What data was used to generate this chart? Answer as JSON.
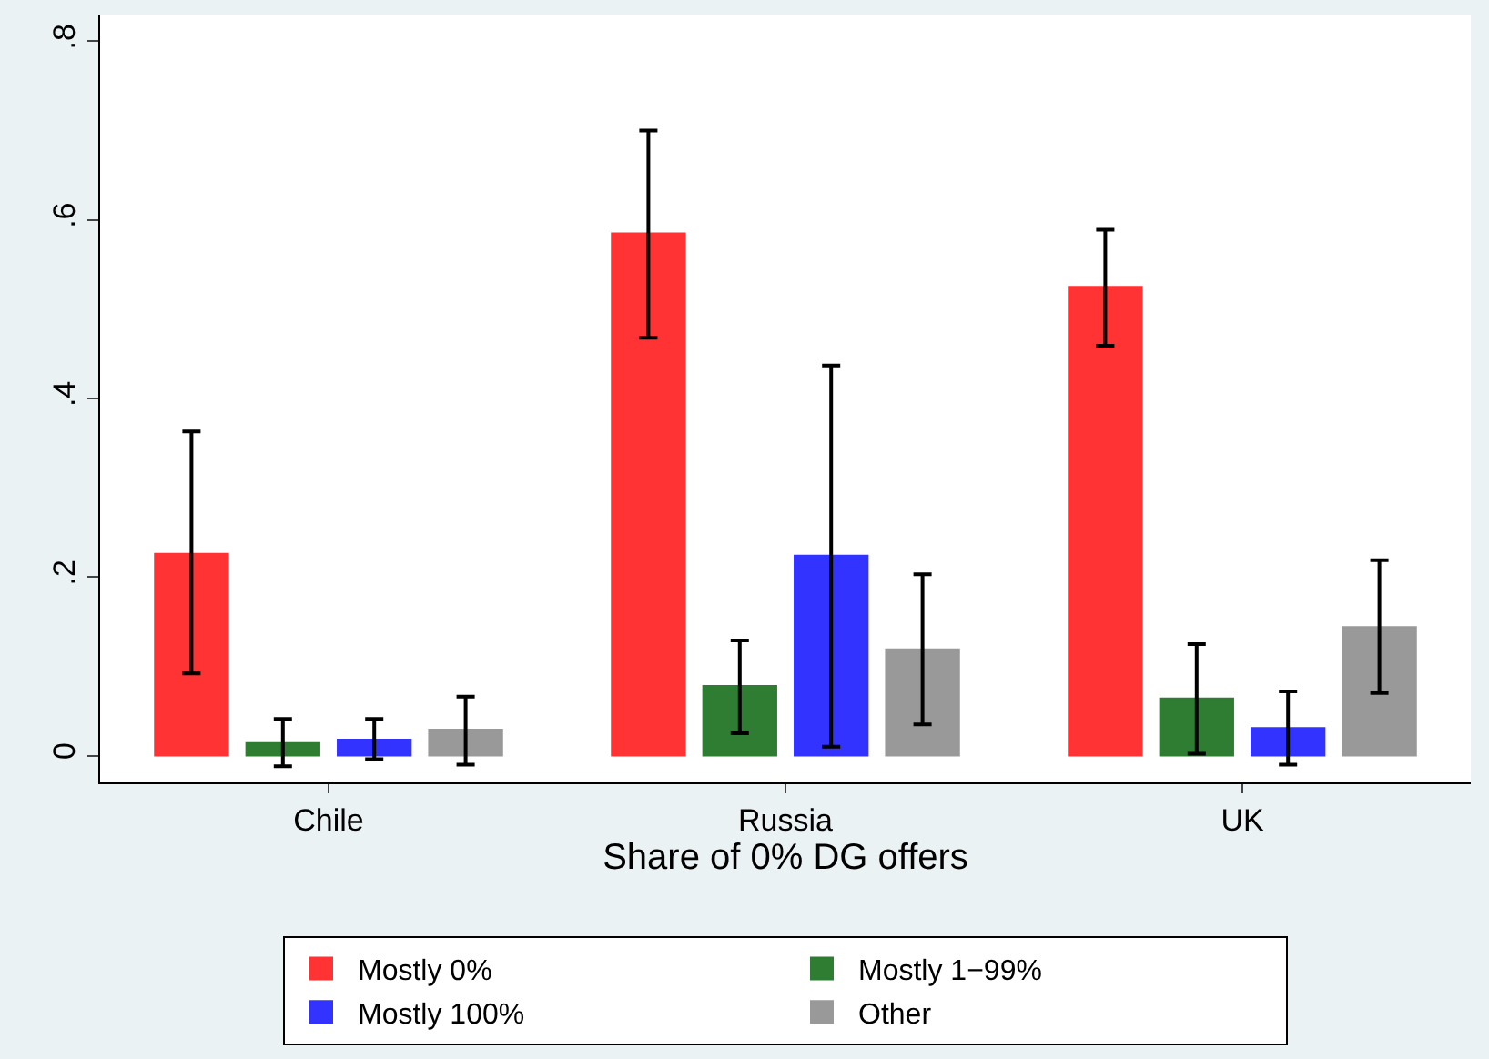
{
  "chart_data": {
    "type": "bar",
    "xlabel": "Share of 0% DG offers",
    "categories": [
      "Chile",
      "Russia",
      "UK"
    ],
    "series": [
      {
        "name": "Mostly 0%",
        "color": "#ff3333",
        "values": [
          0.226,
          0.585,
          0.525
        ],
        "errors": [
          [
            0.092,
            0.363
          ],
          [
            0.468,
            0.7
          ],
          [
            0.459,
            0.589
          ]
        ]
      },
      {
        "name": "Mostly 1−99%",
        "color": "#2e7d32",
        "values": [
          0.014,
          0.078,
          0.064
        ],
        "errors": [
          [
            -0.012,
            0.041
          ],
          [
            0.025,
            0.129
          ],
          [
            0.002,
            0.125
          ]
        ]
      },
      {
        "name": "Mostly 100%",
        "color": "#3333ff",
        "values": [
          0.018,
          0.224,
          0.031
        ],
        "errors": [
          [
            -0.004,
            0.041
          ],
          [
            0.01,
            0.437
          ],
          [
            -0.01,
            0.072
          ]
        ]
      },
      {
        "name": "Other",
        "color": "#999999",
        "values": [
          0.029,
          0.119,
          0.144
        ],
        "errors": [
          [
            -0.01,
            0.066
          ],
          [
            0.035,
            0.203
          ],
          [
            0.07,
            0.219
          ]
        ]
      }
    ],
    "ylim": [
      -0.03,
      0.83
    ],
    "yticks": [
      {
        "value": 0,
        "label": "0"
      },
      {
        "value": 0.2,
        "label": ".2"
      },
      {
        "value": 0.4,
        "label": ".4"
      },
      {
        "value": 0.6,
        "label": ".6"
      },
      {
        "value": 0.8,
        "label": ".8"
      }
    ],
    "legend": "bottom"
  }
}
